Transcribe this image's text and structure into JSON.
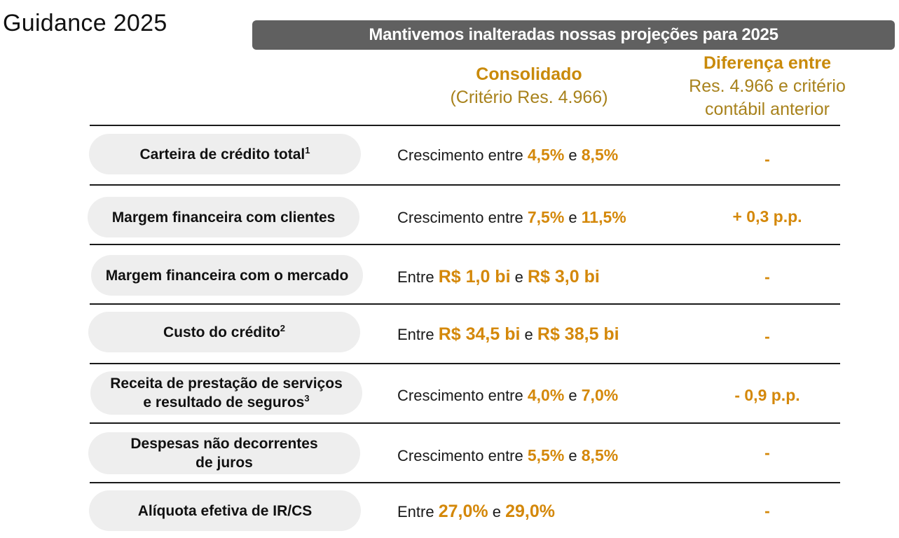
{
  "header": {
    "title": "Guidance 2025",
    "banner": "Mantivemos inalteradas nossas projeções para 2025"
  },
  "columns": {
    "consolidado": {
      "title": "Consolidado",
      "subtitle": "(Critério Res. 4.966)"
    },
    "diferenca": {
      "title": "Diferença entre",
      "line2": "Res. 4.966 e critério",
      "line3": "contábil anterior"
    }
  },
  "rows": [
    {
      "label": "Carteira de crédito total",
      "sup": "1",
      "prefix": "Crescimento entre ",
      "low": "4,5%",
      "conj": " e ",
      "high": "8,5%",
      "diff": "-"
    },
    {
      "label": "Margem financeira com clientes",
      "sup": "",
      "prefix": "Crescimento entre ",
      "low": "7,5%",
      "conj": " e ",
      "high": "11,5%",
      "diff": "+ 0,3 p.p."
    },
    {
      "label": "Margem financeira com o mercado",
      "sup": "",
      "prefix": "Entre ",
      "low": "R$ 1,0 bi",
      "conj": " e ",
      "high": "R$ 3,0 bi",
      "diff": "-"
    },
    {
      "label": "Custo do crédito",
      "sup": "2",
      "prefix": "Entre ",
      "low": "R$ 34,5 bi",
      "conj": " e ",
      "high": "R$ 38,5 bi",
      "diff": "-"
    },
    {
      "label_l1": "Receita de prestação de serviços",
      "label_l2": "e resultado de seguros",
      "sup": "3",
      "prefix": "Crescimento entre ",
      "low": "4,0%",
      "conj": " e ",
      "high": "7,0%",
      "diff": "- 0,9 p.p."
    },
    {
      "label_l1": "Despesas não decorrentes",
      "label_l2": "de juros",
      "sup": "",
      "prefix": "Crescimento entre ",
      "low": "5,5%",
      "conj": " e ",
      "high": "8,5%",
      "diff": "-"
    },
    {
      "label": "Alíquota efetiva de IR/CS",
      "sup": "",
      "prefix": "Entre ",
      "low": "27,0%",
      "conj": " e ",
      "high": "29,0%",
      "diff": "-"
    }
  ],
  "colors": {
    "accent": "#d4880a",
    "banner_bg": "#606060",
    "pill_bg": "#eeeeee"
  }
}
